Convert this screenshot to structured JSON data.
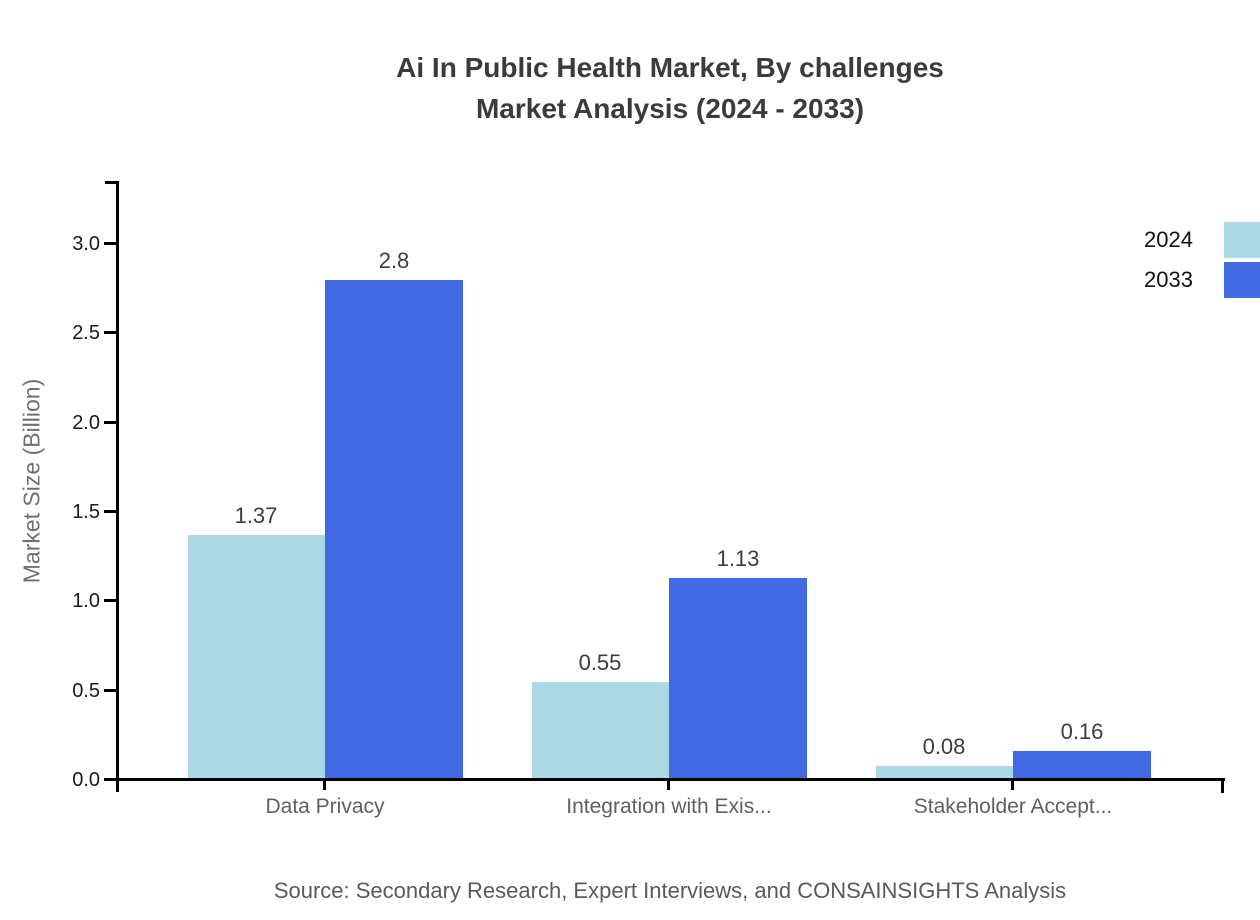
{
  "chart_data": {
    "type": "bar",
    "title": "Ai In Public Health Market, By challenges Market Analysis (2024 - 2033)",
    "title_lines": [
      "Ai In Public Health Market, By challenges",
      "Market Analysis (2024 - 2033)"
    ],
    "ylabel": "Market Size (Billion)",
    "xlabel": "",
    "categories": [
      "Data Privacy",
      "Integration with Exis...",
      "Stakeholder Accept..."
    ],
    "series": [
      {
        "name": "2024",
        "color": "#ADD8E6",
        "values": [
          1.37,
          0.55,
          0.08
        ],
        "value_labels": [
          "1.37",
          "0.55",
          "0.08"
        ]
      },
      {
        "name": "2033",
        "color": "#4169E1",
        "values": [
          2.8,
          1.13,
          0.16
        ],
        "value_labels": [
          "2.8",
          "1.13",
          "0.16"
        ]
      }
    ],
    "yticks": [
      0.0,
      0.5,
      1.0,
      1.5,
      2.0,
      2.5,
      3.0
    ],
    "ytick_labels": [
      "0.0",
      "0.5",
      "1.0",
      "1.5",
      "2.0",
      "2.5",
      "3.0"
    ],
    "ylim": [
      0,
      3.35
    ],
    "grid": false,
    "legend_position": "top-right",
    "legend": [
      {
        "label": "2024",
        "color": "#ADD8E6"
      },
      {
        "label": "2033",
        "color": "#4169E1"
      }
    ],
    "axis_color": "#000000",
    "source": "Source: Secondary Research, Expert Interviews, and CONSAINSIGHTS Analysis"
  }
}
